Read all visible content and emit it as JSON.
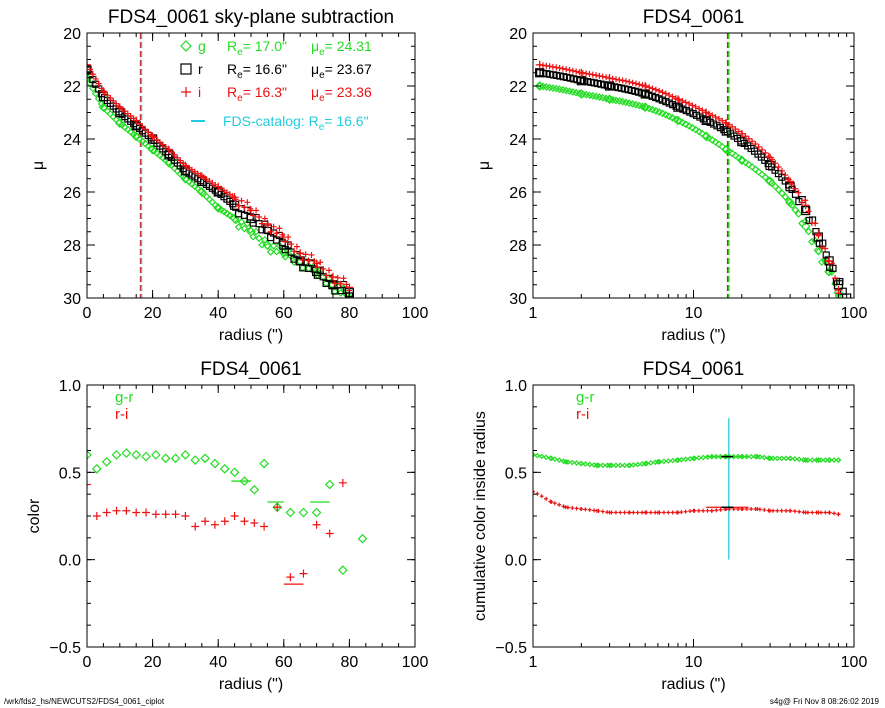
{
  "footer": {
    "left": "/wrk/fds2_hs/NEWCUTS2/FDS4_0061_ciplot",
    "right": "s4g@  Fri Nov  8 08:26:02 2019"
  },
  "colors": {
    "g": "#22dd22",
    "r": "#000000",
    "i": "#ee1111",
    "catalog": "#22ccdd"
  },
  "chart_data": [
    {
      "type": "scatter",
      "title": "FDS4_0061 sky-plane subtraction",
      "xlabel": "radius (\")",
      "ylabel": "μ",
      "xlim": [
        0,
        100
      ],
      "ylim": [
        30,
        20
      ],
      "xticks": [
        0,
        20,
        40,
        60,
        80,
        100
      ],
      "yticks": [
        20,
        22,
        24,
        26,
        28,
        30
      ],
      "x_scale": "linear",
      "legend_position": "top-right",
      "legend": [
        {
          "band": "g",
          "symbol": "diamond",
          "re_label": "R",
          "re_sub": "e",
          "re_value": "= 17.0\"",
          "mu_label": "μ",
          "mu_sub": "e",
          "mu_value": "= 24.31"
        },
        {
          "band": "r",
          "symbol": "square",
          "re_label": "R",
          "re_sub": "e",
          "re_value": "= 16.6\"",
          "mu_label": "μ",
          "mu_sub": "e",
          "mu_value": "= 23.67"
        },
        {
          "band": "i",
          "symbol": "plus",
          "re_label": "R",
          "re_sub": "e",
          "re_value": "= 16.3\"",
          "mu_label": "μ",
          "mu_sub": "e",
          "mu_value": "= 23.36"
        }
      ],
      "catalog_label": "FDS-catalog: R",
      "catalog_sub": "e",
      "catalog_value": "=  16.6\"",
      "series": [
        {
          "name": "g",
          "x": [
            0,
            5,
            10,
            15,
            20,
            25,
            30,
            35,
            40,
            45,
            50,
            55,
            60,
            65,
            70,
            75,
            80
          ],
          "y": [
            21.7,
            22.8,
            23.4,
            23.9,
            24.4,
            24.9,
            25.5,
            26.0,
            26.6,
            27.0,
            27.5,
            28.0,
            28.3,
            28.6,
            29.0,
            29.5,
            30.0
          ]
        },
        {
          "name": "r",
          "x": [
            0,
            5,
            10,
            15,
            20,
            25,
            30,
            35,
            40,
            45,
            50,
            55,
            60,
            65,
            70,
            75,
            80
          ],
          "y": [
            21.4,
            22.4,
            23.0,
            23.5,
            24.0,
            24.6,
            25.2,
            25.6,
            26.0,
            26.5,
            27.0,
            27.4,
            28.0,
            28.6,
            29.0,
            29.5,
            29.8
          ]
        },
        {
          "name": "i",
          "x": [
            0,
            5,
            10,
            15,
            20,
            25,
            30,
            35,
            40,
            45,
            50,
            55,
            60,
            65,
            70,
            75,
            80
          ],
          "y": [
            21.2,
            22.2,
            22.8,
            23.3,
            23.9,
            24.4,
            25.0,
            25.4,
            25.8,
            26.2,
            26.7,
            27.2,
            27.7,
            28.3,
            28.7,
            29.2,
            29.6
          ]
        }
      ],
      "vlines": [
        {
          "x": 16.6,
          "color": "r"
        },
        {
          "x": 16.3,
          "color": "i"
        },
        {
          "x": 16.6,
          "color": "catalog"
        }
      ]
    },
    {
      "type": "scatter",
      "title": "FDS4_0061",
      "xlabel": "radius (\")",
      "ylabel": "μ",
      "xlim": [
        1,
        100
      ],
      "ylim": [
        30,
        20
      ],
      "xticks": [
        1,
        10,
        100
      ],
      "yticks": [
        20,
        22,
        24,
        26,
        28,
        30
      ],
      "x_scale": "log",
      "series": [
        {
          "name": "g",
          "x": [
            1.1,
            2,
            3,
            5,
            8,
            12,
            16,
            20,
            30,
            40,
            50,
            60,
            70,
            80
          ],
          "y": [
            22.0,
            22.3,
            22.5,
            22.8,
            23.3,
            23.9,
            24.4,
            24.8,
            25.6,
            26.4,
            27.3,
            28.2,
            29.0,
            29.8
          ]
        },
        {
          "name": "r",
          "x": [
            1.1,
            2,
            3,
            5,
            8,
            12,
            16,
            20,
            30,
            40,
            50,
            60,
            70,
            80,
            90
          ],
          "y": [
            21.5,
            21.8,
            22.0,
            22.3,
            22.8,
            23.3,
            23.7,
            24.1,
            25.0,
            25.8,
            26.7,
            27.7,
            28.6,
            29.5,
            30.0
          ]
        },
        {
          "name": "i",
          "x": [
            1.1,
            2,
            3,
            5,
            8,
            12,
            16,
            20,
            30,
            40,
            50,
            60,
            70,
            80
          ],
          "y": [
            21.2,
            21.5,
            21.7,
            22.0,
            22.5,
            23.0,
            23.4,
            23.8,
            24.7,
            25.6,
            26.5,
            27.6,
            28.6,
            29.7
          ]
        }
      ],
      "vlines": [
        {
          "x": 16.6,
          "color": "r"
        },
        {
          "x": 16.3,
          "color": "i"
        },
        {
          "x": 16.6,
          "color": "g"
        }
      ]
    },
    {
      "type": "scatter",
      "title": "FDS4_0061",
      "xlabel": "radius (\")",
      "ylabel": "color",
      "xlim": [
        0,
        100
      ],
      "ylim": [
        -0.5,
        1.0
      ],
      "xticks": [
        0,
        20,
        40,
        60,
        80,
        100
      ],
      "yticks": [
        -0.5,
        0.0,
        0.5,
        1.0
      ],
      "x_scale": "linear",
      "legend_position": "top-left",
      "legend": [
        {
          "name": "g-r",
          "color": "g"
        },
        {
          "name": "r-i",
          "color": "i"
        }
      ],
      "series": [
        {
          "name": "g-r",
          "x": [
            0,
            3,
            6,
            9,
            12,
            15,
            18,
            21,
            24,
            27,
            30,
            33,
            36,
            39,
            42,
            45,
            48,
            51,
            54,
            58,
            62,
            66,
            70,
            74,
            78,
            84
          ],
          "y": [
            0.6,
            0.52,
            0.56,
            0.6,
            0.61,
            0.6,
            0.59,
            0.6,
            0.58,
            0.58,
            0.6,
            0.57,
            0.58,
            0.55,
            0.52,
            0.5,
            0.45,
            0.4,
            0.55,
            0.3,
            0.27,
            0.27,
            0.27,
            0.43,
            -0.06,
            0.12
          ]
        },
        {
          "name": "r-i",
          "x": [
            0,
            3,
            6,
            9,
            12,
            15,
            18,
            21,
            24,
            27,
            30,
            33,
            36,
            39,
            42,
            45,
            48,
            51,
            54,
            58,
            62,
            66,
            70,
            74,
            78
          ],
          "y": [
            0.43,
            0.25,
            0.27,
            0.28,
            0.28,
            0.27,
            0.27,
            0.26,
            0.26,
            0.26,
            0.25,
            0.19,
            0.22,
            0.2,
            0.22,
            0.25,
            0.22,
            0.21,
            0.19,
            0.3,
            -0.1,
            -0.08,
            0.2,
            0.15,
            0.44
          ]
        }
      ],
      "segments": [
        {
          "series": "g-r",
          "x": [
            44,
            50
          ],
          "y": 0.45
        },
        {
          "series": "g-r",
          "x": [
            55,
            60
          ],
          "y": 0.33
        },
        {
          "series": "g-r",
          "x": [
            68,
            74
          ],
          "y": 0.33
        },
        {
          "series": "r-i",
          "x": [
            60,
            66
          ],
          "y": -0.14
        }
      ]
    },
    {
      "type": "scatter",
      "title": "FDS4_0061",
      "xlabel": "radius (\")",
      "ylabel": "cumulative color inside radius",
      "xlim": [
        1,
        100
      ],
      "ylim": [
        -0.5,
        1.0
      ],
      "xticks": [
        1,
        10,
        100
      ],
      "yticks": [
        -0.5,
        0.0,
        0.5,
        1.0
      ],
      "x_scale": "log",
      "legend_position": "top-left",
      "legend": [
        {
          "name": "g-r",
          "color": "g"
        },
        {
          "name": "r-i",
          "color": "i"
        }
      ],
      "series": [
        {
          "name": "g-r",
          "x": [
            1,
            1.3,
            1.6,
            2,
            2.5,
            3,
            4,
            5,
            6,
            8,
            10,
            13,
            16,
            20,
            25,
            30,
            40,
            50,
            60,
            70,
            80
          ],
          "y": [
            0.6,
            0.58,
            0.56,
            0.55,
            0.54,
            0.54,
            0.54,
            0.55,
            0.56,
            0.57,
            0.58,
            0.59,
            0.59,
            0.59,
            0.59,
            0.58,
            0.58,
            0.57,
            0.57,
            0.57,
            0.57
          ]
        },
        {
          "name": "r-i",
          "x": [
            1,
            1.3,
            1.6,
            2,
            2.5,
            3,
            4,
            5,
            6,
            8,
            10,
            13,
            16,
            20,
            25,
            30,
            40,
            50,
            60,
            70,
            80
          ],
          "y": [
            0.39,
            0.33,
            0.3,
            0.29,
            0.28,
            0.27,
            0.27,
            0.27,
            0.27,
            0.27,
            0.28,
            0.28,
            0.29,
            0.29,
            0.29,
            0.28,
            0.28,
            0.27,
            0.27,
            0.27,
            0.26
          ]
        }
      ],
      "vline": {
        "x": 16.6,
        "y": [
          0.0,
          0.81
        ],
        "color": "catalog"
      },
      "segments": [
        {
          "series": "g-r",
          "x": [
            12,
            22
          ],
          "y": 0.59
        },
        {
          "series": "r-i",
          "x": [
            12,
            22
          ],
          "y": 0.3
        }
      ]
    }
  ]
}
